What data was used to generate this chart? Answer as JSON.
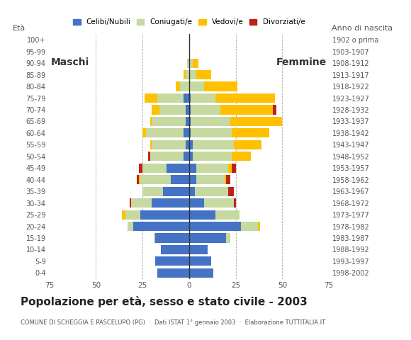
{
  "age_groups": [
    "0-4",
    "5-9",
    "10-14",
    "15-19",
    "20-24",
    "25-29",
    "30-34",
    "35-39",
    "40-44",
    "45-49",
    "50-54",
    "55-59",
    "60-64",
    "65-69",
    "70-74",
    "75-79",
    "80-84",
    "85-89",
    "90-94",
    "95-99",
    "100+"
  ],
  "birth_years": [
    "1998-2002",
    "1993-1997",
    "1988-1992",
    "1983-1987",
    "1978-1982",
    "1973-1977",
    "1968-1972",
    "1963-1967",
    "1958-1962",
    "1953-1957",
    "1948-1952",
    "1943-1947",
    "1938-1942",
    "1933-1937",
    "1928-1932",
    "1923-1927",
    "1918-1922",
    "1913-1917",
    "1908-1912",
    "1903-1907",
    "1902 o prima"
  ],
  "male": {
    "celibi": [
      17,
      18,
      15,
      18,
      30,
      26,
      20,
      14,
      10,
      12,
      3,
      2,
      3,
      2,
      2,
      3,
      0,
      0,
      0,
      0,
      0
    ],
    "coniugati": [
      0,
      0,
      0,
      1,
      3,
      8,
      11,
      11,
      16,
      13,
      18,
      18,
      20,
      18,
      14,
      14,
      5,
      2,
      1,
      0,
      0
    ],
    "vedovi": [
      0,
      0,
      0,
      0,
      0,
      2,
      0,
      0,
      1,
      0,
      0,
      1,
      2,
      1,
      4,
      7,
      2,
      1,
      0,
      0,
      0
    ],
    "divorziati": [
      0,
      0,
      0,
      0,
      0,
      0,
      1,
      0,
      1,
      2,
      1,
      0,
      0,
      0,
      0,
      0,
      0,
      0,
      0,
      0,
      0
    ]
  },
  "female": {
    "nubili": [
      13,
      12,
      10,
      20,
      28,
      14,
      8,
      3,
      4,
      4,
      2,
      2,
      1,
      1,
      1,
      1,
      0,
      0,
      0,
      0,
      0
    ],
    "coniugate": [
      0,
      0,
      0,
      2,
      9,
      13,
      16,
      18,
      15,
      17,
      21,
      22,
      22,
      21,
      16,
      13,
      8,
      4,
      2,
      0,
      0
    ],
    "vedove": [
      0,
      0,
      0,
      0,
      1,
      0,
      0,
      0,
      1,
      2,
      10,
      15,
      20,
      28,
      28,
      32,
      18,
      8,
      3,
      0,
      0
    ],
    "divorziate": [
      0,
      0,
      0,
      0,
      0,
      0,
      1,
      3,
      2,
      2,
      0,
      0,
      0,
      0,
      2,
      0,
      0,
      0,
      0,
      0,
      0
    ]
  },
  "colors": {
    "celibi_nubili": "#4472c4",
    "coniugati": "#c5d9a0",
    "vedovi": "#ffc000",
    "divorziati": "#c0201a"
  },
  "title": "Popolazione per età, sesso e stato civile - 2003",
  "subtitle": "COMUNE DI SCHEGGIA E PASCELUPO (PG)  ·  Dati ISTAT 1° gennaio 2003  ·  Elaborazione TUTTITALIA.IT",
  "xlabel_left": "Maschi",
  "xlabel_right": "Femmine",
  "ylabel_left": "Età",
  "ylabel_right": "Anno di nascita",
  "xlim": 75,
  "legend_labels": [
    "Celibi/Nubili",
    "Coniugati/e",
    "Vedovi/e",
    "Divorziati/e"
  ],
  "bg_color": "#ffffff",
  "bar_height": 0.8
}
